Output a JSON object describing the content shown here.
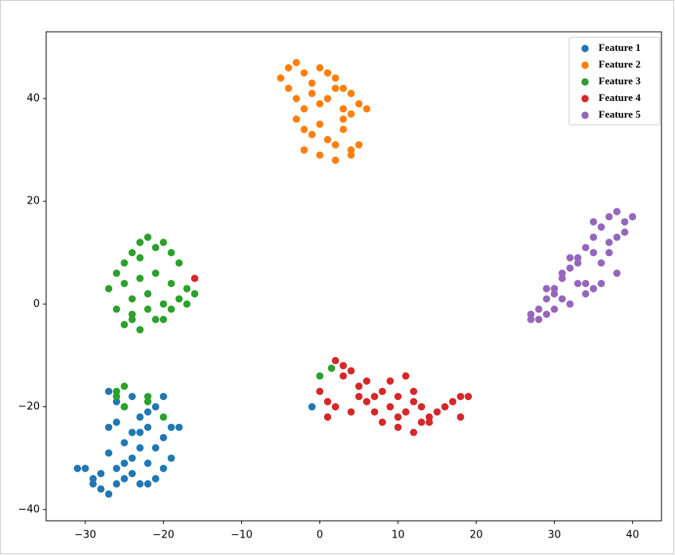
{
  "chart_data": {
    "type": "scatter",
    "legend": "upper right",
    "xlim": [
      -35,
      43.7
    ],
    "ylim": [
      -42.2,
      53
    ],
    "xticks": [
      {
        "value": -30,
        "label": "−30"
      },
      {
        "value": -20,
        "label": "−20"
      },
      {
        "value": -10,
        "label": "−10"
      },
      0,
      10,
      20,
      30,
      40
    ],
    "yticks": [
      {
        "value": -40,
        "label": "−40"
      },
      {
        "value": -20,
        "label": "−20"
      },
      0,
      20,
      40
    ],
    "series": [
      {
        "name": "Feature 1",
        "color": "#1f77b4",
        "x": [
          -27,
          -26,
          -25,
          -24,
          -23,
          -22,
          -21,
          -20,
          -19,
          -18,
          -26,
          -24,
          -22,
          -20,
          -25,
          -23,
          -21,
          -27,
          -19,
          -22,
          -24,
          -26,
          -28,
          -29,
          -30,
          -31,
          -28,
          -27,
          -26,
          -25,
          -24,
          -23,
          -22,
          -21,
          -20,
          -27,
          -25,
          -23,
          -29,
          -1
        ],
        "y": [
          -17,
          -19,
          -20,
          -18,
          -22,
          -21,
          -20,
          -18,
          -24,
          -24,
          -23,
          -25,
          -24,
          -26,
          -27,
          -25,
          -28,
          -24,
          -30,
          -31,
          -30,
          -32,
          -33,
          -34,
          -32,
          -32,
          -36,
          -37,
          -35,
          -34,
          -33,
          -35,
          -35,
          -34,
          -32,
          -29,
          -31,
          -28,
          -35,
          -20
        ]
      },
      {
        "name": "Feature 2",
        "color": "#ff7f0e",
        "x": [
          -5,
          -4,
          -3,
          -2,
          -1,
          0,
          1,
          2,
          3,
          4,
          -4,
          -3,
          -2,
          -1,
          0,
          1,
          2,
          3,
          4,
          5,
          -3,
          -2,
          -1,
          0,
          1,
          2,
          3,
          4,
          5,
          6,
          -2,
          0,
          2,
          4,
          3
        ],
        "y": [
          44,
          46,
          47,
          45,
          43,
          46,
          45,
          44,
          42,
          41,
          42,
          40,
          38,
          41,
          39,
          40,
          42,
          38,
          37,
          39,
          36,
          34,
          33,
          35,
          32,
          31,
          34,
          30,
          31,
          38,
          30,
          29,
          28,
          29,
          36
        ]
      },
      {
        "name": "Feature 3",
        "color": "#2ca02c",
        "x": [
          -27,
          -26,
          -25,
          -24,
          -23,
          -22,
          -21,
          -20,
          -19,
          -18,
          -25,
          -23,
          -21,
          -19,
          -17,
          -16,
          -24,
          -22,
          -20,
          -18,
          -26,
          -24,
          -22,
          -20,
          -17,
          -25,
          -23,
          -21,
          -19,
          -24,
          -23,
          -26,
          -25,
          -22,
          -20,
          -26,
          -25,
          -22,
          0,
          1.5
        ],
        "y": [
          3,
          6,
          8,
          10,
          12,
          13,
          11,
          12,
          10,
          8,
          4,
          5,
          6,
          4,
          3,
          2,
          1,
          2,
          0,
          1,
          -1,
          -2,
          -1,
          -3,
          0,
          -4,
          -5,
          -3,
          -1,
          -3,
          9,
          -17,
          -16,
          -19,
          -22,
          -18,
          -20,
          -18,
          -14,
          -12.5
        ]
      },
      {
        "name": "Feature 4",
        "color": "#d62728",
        "x": [
          0,
          1,
          2,
          3,
          4,
          5,
          6,
          7,
          8,
          9,
          10,
          11,
          12,
          13,
          14,
          15,
          16,
          17,
          18,
          19,
          2,
          4,
          6,
          8,
          10,
          12,
          14,
          9,
          11,
          13,
          3,
          5,
          7,
          12,
          10,
          18,
          1,
          -16
        ],
        "y": [
          -17,
          -19,
          -11,
          -14,
          -13,
          -16,
          -15,
          -18,
          -17,
          -20,
          -22,
          -21,
          -19,
          -23,
          -22,
          -21,
          -20,
          -19,
          -18,
          -18,
          -20,
          -21,
          -19,
          -23,
          -24,
          -25,
          -23,
          -15,
          -14,
          -20,
          -12,
          -18,
          -21,
          -17,
          -18,
          -22,
          -22,
          5
        ]
      },
      {
        "name": "Feature 5",
        "color": "#9467bd",
        "x": [
          27,
          28,
          29,
          30,
          31,
          32,
          33,
          34,
          35,
          36,
          37,
          38,
          39,
          40,
          28,
          30,
          32,
          34,
          36,
          38,
          29,
          31,
          33,
          35,
          37,
          39,
          27,
          30,
          33,
          36,
          31,
          34,
          37,
          32,
          35,
          38,
          29,
          35
        ],
        "y": [
          -3,
          -1,
          1,
          3,
          5,
          7,
          9,
          11,
          13,
          15,
          17,
          18,
          16,
          17,
          -3,
          -1,
          0,
          2,
          4,
          6,
          3,
          6,
          8,
          10,
          12,
          14,
          -2,
          2,
          4,
          8,
          1,
          4,
          10,
          9,
          16,
          13,
          -2,
          3
        ]
      }
    ]
  }
}
